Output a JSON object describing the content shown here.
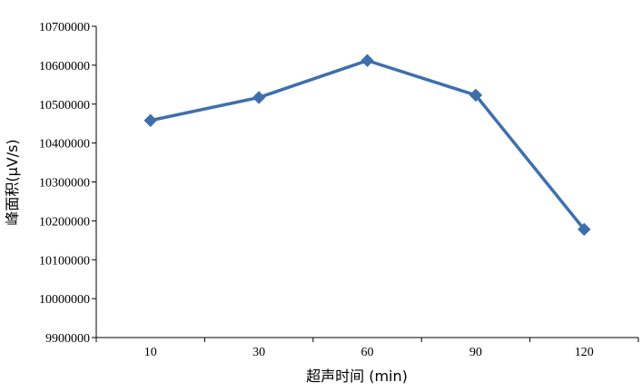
{
  "chart_data": {
    "type": "line",
    "xlabel": "超声时间 (min)",
    "ylabel": "峰面积(μV/s)",
    "categories": [
      "10",
      "30",
      "60",
      "90",
      "120"
    ],
    "series": [
      {
        "values": [
          10458000,
          10517000,
          10612000,
          10523000,
          10178000
        ]
      }
    ],
    "ylim": [
      9900000,
      10700000
    ],
    "yticks": [
      9900000,
      10000000,
      10100000,
      10200000,
      10300000,
      10400000,
      10500000,
      10600000,
      10700000
    ],
    "grid": false,
    "marker": "diamond",
    "colors": {
      "series": "#3e6fad",
      "axis": "#000000"
    }
  }
}
